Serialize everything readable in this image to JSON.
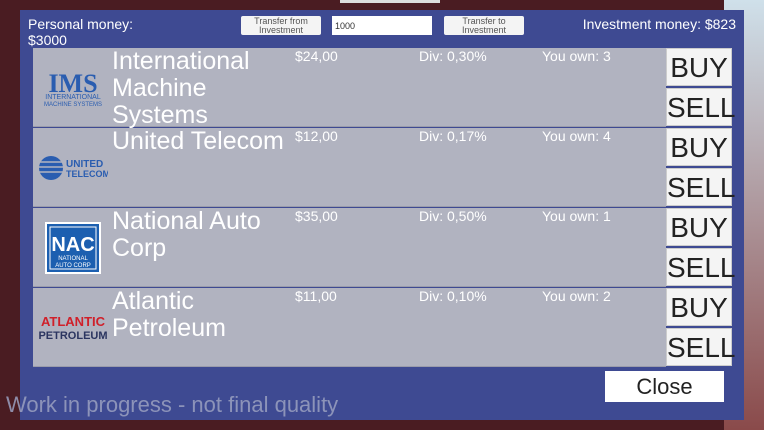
{
  "header": {
    "personal_label": "Personal money:",
    "personal_value": "$3000",
    "transfer_from": "Transfer from Investment",
    "amount": "1000",
    "transfer_to": "Transfer to Investment",
    "investment": "Investment money: $823"
  },
  "stocks": [
    {
      "name": "International Machine Systems",
      "logo": "IMS",
      "price": "$24,00",
      "div": "Div: 0,30%",
      "own": "You own: 3"
    },
    {
      "name": "United Telecom",
      "logo": "UNITED TELECOM",
      "price": "$12,00",
      "div": "Div: 0,17%",
      "own": "You own: 4"
    },
    {
      "name": "National Auto Corp",
      "logo": "NAC",
      "price": "$35,00",
      "div": "Div: 0,50%",
      "own": "You own: 1"
    },
    {
      "name": "Atlantic Petroleum",
      "logo": "ATLANTIC PETROLEUM",
      "price": "$11,00",
      "div": "Div: 0,10%",
      "own": "You own: 2"
    }
  ],
  "buy_label": "BUY",
  "sell_label": "SELL",
  "close_label": "Close",
  "watermark": "Work in progress - not final quality",
  "colors": {
    "panel": "#3e4a92",
    "row": "#b1b3c0"
  }
}
